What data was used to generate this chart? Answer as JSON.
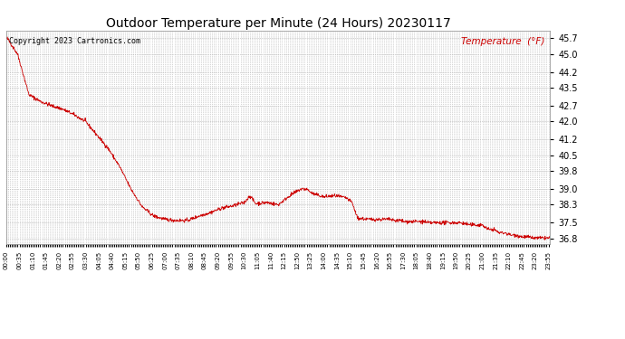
{
  "title": "Outdoor Temperature per Minute (24 Hours) 20230117",
  "copyright_text": "Copyright 2023 Cartronics.com",
  "legend_label": "Temperature  (°F)",
  "line_color": "#cc0000",
  "background_color": "#ffffff",
  "grid_color": "#aaaaaa",
  "text_color": "#000000",
  "ylim": [
    36.55,
    46.05
  ],
  "yticks": [
    36.8,
    37.5,
    38.3,
    39.0,
    39.8,
    40.5,
    41.2,
    42.0,
    42.7,
    43.5,
    44.2,
    45.0,
    45.7
  ],
  "total_minutes": 1440,
  "xtick_interval": 5,
  "x_label_interval": 35,
  "title_fontsize": 10,
  "copyright_fontsize": 6,
  "legend_fontsize": 7.5,
  "ytick_fontsize": 7,
  "xtick_fontsize": 5
}
